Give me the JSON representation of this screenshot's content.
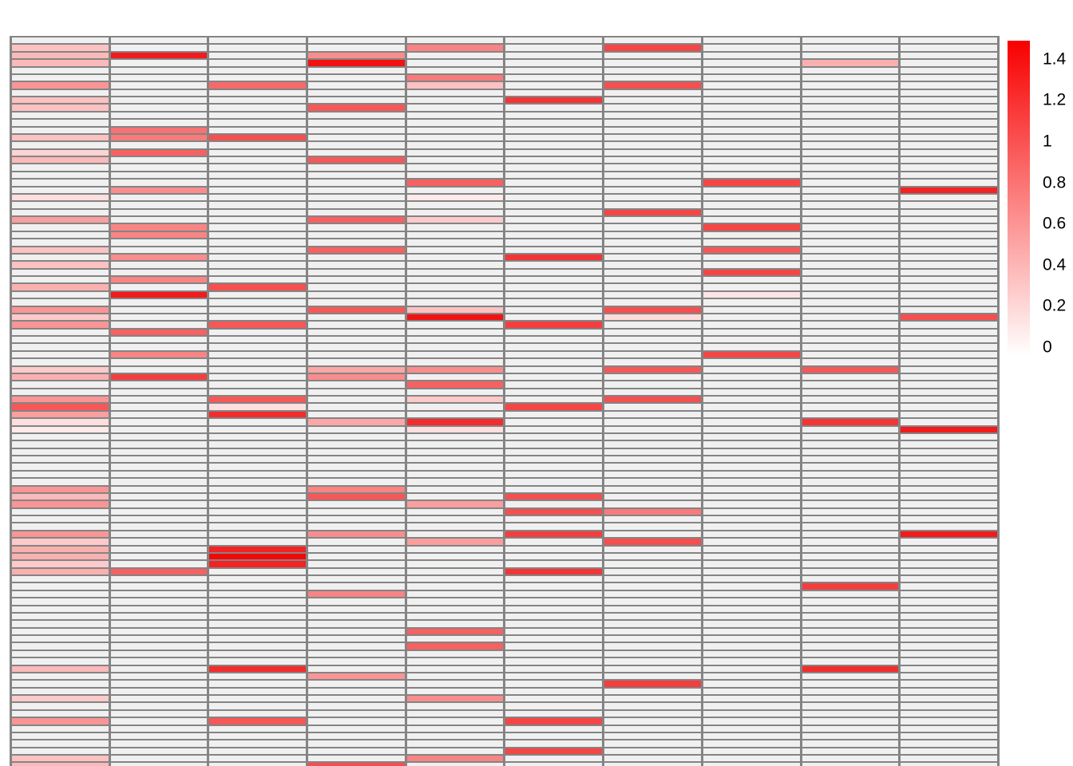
{
  "chart_data": {
    "type": "heatmap",
    "title": "",
    "xlabel": "",
    "ylabel": "",
    "n_rows": 98,
    "n_cols": 10,
    "note_last_row_clipped": true,
    "value_range": [
      0,
      1.45
    ],
    "empty_fill": "#f0f0f0",
    "grid_line_color": "#848484",
    "colormap": {
      "low": "#ffffff",
      "high": "#f10909"
    },
    "legend": {
      "position": "right",
      "gradient_top_color": "#f80000",
      "gradient_bottom_color": "#ffffff",
      "tick_labels": [
        "1.4",
        "1.2",
        "1",
        "0.8",
        "0.6",
        "0.4",
        "0.2",
        "0"
      ],
      "tick_values": [
        1.4,
        1.2,
        1.0,
        0.8,
        0.6,
        0.4,
        0.2,
        0
      ]
    },
    "cells": [
      [
        2,
        1,
        0.35
      ],
      [
        2,
        5,
        0.7
      ],
      [
        2,
        7,
        1.05
      ],
      [
        3,
        1,
        0.4
      ],
      [
        3,
        2,
        1.3
      ],
      [
        3,
        4,
        0.65
      ],
      [
        4,
        1,
        0.4
      ],
      [
        4,
        4,
        1.35
      ],
      [
        4,
        9,
        0.45
      ],
      [
        6,
        5,
        0.75
      ],
      [
        7,
        1,
        0.6
      ],
      [
        7,
        3,
        0.85
      ],
      [
        7,
        5,
        0.35
      ],
      [
        7,
        7,
        1.0
      ],
      [
        9,
        1,
        0.35
      ],
      [
        9,
        6,
        1.15
      ],
      [
        10,
        1,
        0.35
      ],
      [
        10,
        4,
        0.95
      ],
      [
        13,
        2,
        0.8
      ],
      [
        14,
        1,
        0.35
      ],
      [
        14,
        2,
        0.75
      ],
      [
        14,
        3,
        1.0
      ],
      [
        16,
        1,
        0.25
      ],
      [
        16,
        2,
        0.9
      ],
      [
        17,
        1,
        0.4
      ],
      [
        17,
        4,
        0.95
      ],
      [
        20,
        5,
        0.9
      ],
      [
        20,
        8,
        1.05
      ],
      [
        21,
        2,
        0.65
      ],
      [
        21,
        10,
        1.25
      ],
      [
        22,
        1,
        0.18
      ],
      [
        22,
        5,
        0.12
      ],
      [
        24,
        7,
        1.05
      ],
      [
        25,
        1,
        0.55
      ],
      [
        25,
        4,
        0.9
      ],
      [
        25,
        5,
        0.3
      ],
      [
        26,
        2,
        0.7
      ],
      [
        26,
        8,
        1.05
      ],
      [
        27,
        2,
        0.7
      ],
      [
        29,
        1,
        0.35
      ],
      [
        29,
        4,
        0.9
      ],
      [
        29,
        8,
        0.95
      ],
      [
        30,
        2,
        0.65
      ],
      [
        30,
        6,
        1.15
      ],
      [
        31,
        1,
        0.35
      ],
      [
        32,
        8,
        1.05
      ],
      [
        33,
        2,
        0.7
      ],
      [
        34,
        1,
        0.45
      ],
      [
        34,
        3,
        1.0
      ],
      [
        35,
        2,
        1.3
      ],
      [
        35,
        8,
        0.15
      ],
      [
        37,
        1,
        0.6
      ],
      [
        37,
        4,
        0.95
      ],
      [
        37,
        5,
        0.35
      ],
      [
        37,
        7,
        1.0
      ],
      [
        38,
        1,
        0.3
      ],
      [
        38,
        5,
        1.35
      ],
      [
        38,
        7,
        0.2
      ],
      [
        38,
        10,
        1.0
      ],
      [
        39,
        1,
        0.6
      ],
      [
        39,
        3,
        0.95
      ],
      [
        39,
        6,
        1.1
      ],
      [
        40,
        2,
        0.9
      ],
      [
        43,
        2,
        0.7
      ],
      [
        43,
        8,
        1.05
      ],
      [
        45,
        1,
        0.3
      ],
      [
        45,
        4,
        0.5
      ],
      [
        45,
        5,
        0.65
      ],
      [
        45,
        7,
        0.95
      ],
      [
        45,
        9,
        0.95
      ],
      [
        46,
        1,
        0.45
      ],
      [
        46,
        2,
        1.1
      ],
      [
        46,
        4,
        0.65
      ],
      [
        47,
        5,
        0.9
      ],
      [
        49,
        1,
        0.6
      ],
      [
        49,
        3,
        0.95
      ],
      [
        49,
        5,
        0.3
      ],
      [
        49,
        7,
        1.0
      ],
      [
        50,
        1,
        0.95
      ],
      [
        50,
        3,
        0.18
      ],
      [
        50,
        6,
        1.05
      ],
      [
        51,
        1,
        0.55
      ],
      [
        51,
        3,
        1.2
      ],
      [
        52,
        1,
        0.18
      ],
      [
        52,
        4,
        0.5
      ],
      [
        52,
        5,
        1.2
      ],
      [
        52,
        9,
        1.15
      ],
      [
        53,
        1,
        0.12
      ],
      [
        53,
        5,
        0.18
      ],
      [
        53,
        10,
        1.3
      ],
      [
        61,
        1,
        0.6
      ],
      [
        61,
        4,
        0.7
      ],
      [
        62,
        1,
        0.4
      ],
      [
        62,
        4,
        0.95
      ],
      [
        62,
        6,
        1.0
      ],
      [
        63,
        1,
        0.6
      ],
      [
        63,
        5,
        0.55
      ],
      [
        64,
        6,
        1.0
      ],
      [
        64,
        7,
        0.75
      ],
      [
        67,
        1,
        0.6
      ],
      [
        67,
        4,
        0.65
      ],
      [
        67,
        6,
        1.1
      ],
      [
        67,
        10,
        1.3
      ],
      [
        68,
        1,
        0.3
      ],
      [
        68,
        5,
        0.55
      ],
      [
        68,
        7,
        1.0
      ],
      [
        69,
        1,
        0.45
      ],
      [
        69,
        3,
        1.25
      ],
      [
        70,
        1,
        0.45
      ],
      [
        70,
        3,
        1.4
      ],
      [
        71,
        1,
        0.3
      ],
      [
        71,
        3,
        1.25
      ],
      [
        72,
        1,
        0.45
      ],
      [
        72,
        2,
        0.9
      ],
      [
        72,
        6,
        1.15
      ],
      [
        74,
        9,
        1.1
      ],
      [
        75,
        4,
        0.7
      ],
      [
        80,
        5,
        0.9
      ],
      [
        82,
        5,
        0.9
      ],
      [
        85,
        1,
        0.4
      ],
      [
        85,
        3,
        1.2
      ],
      [
        85,
        9,
        1.2
      ],
      [
        86,
        4,
        0.6
      ],
      [
        87,
        7,
        1.1
      ],
      [
        89,
        1,
        0.3
      ],
      [
        89,
        5,
        0.65
      ],
      [
        92,
        1,
        0.6
      ],
      [
        92,
        3,
        0.95
      ],
      [
        92,
        6,
        1.05
      ],
      [
        96,
        6,
        1.05
      ],
      [
        97,
        1,
        0.35
      ],
      [
        97,
        5,
        0.7
      ],
      [
        98,
        1,
        0.4
      ],
      [
        98,
        4,
        1.0
      ]
    ]
  }
}
